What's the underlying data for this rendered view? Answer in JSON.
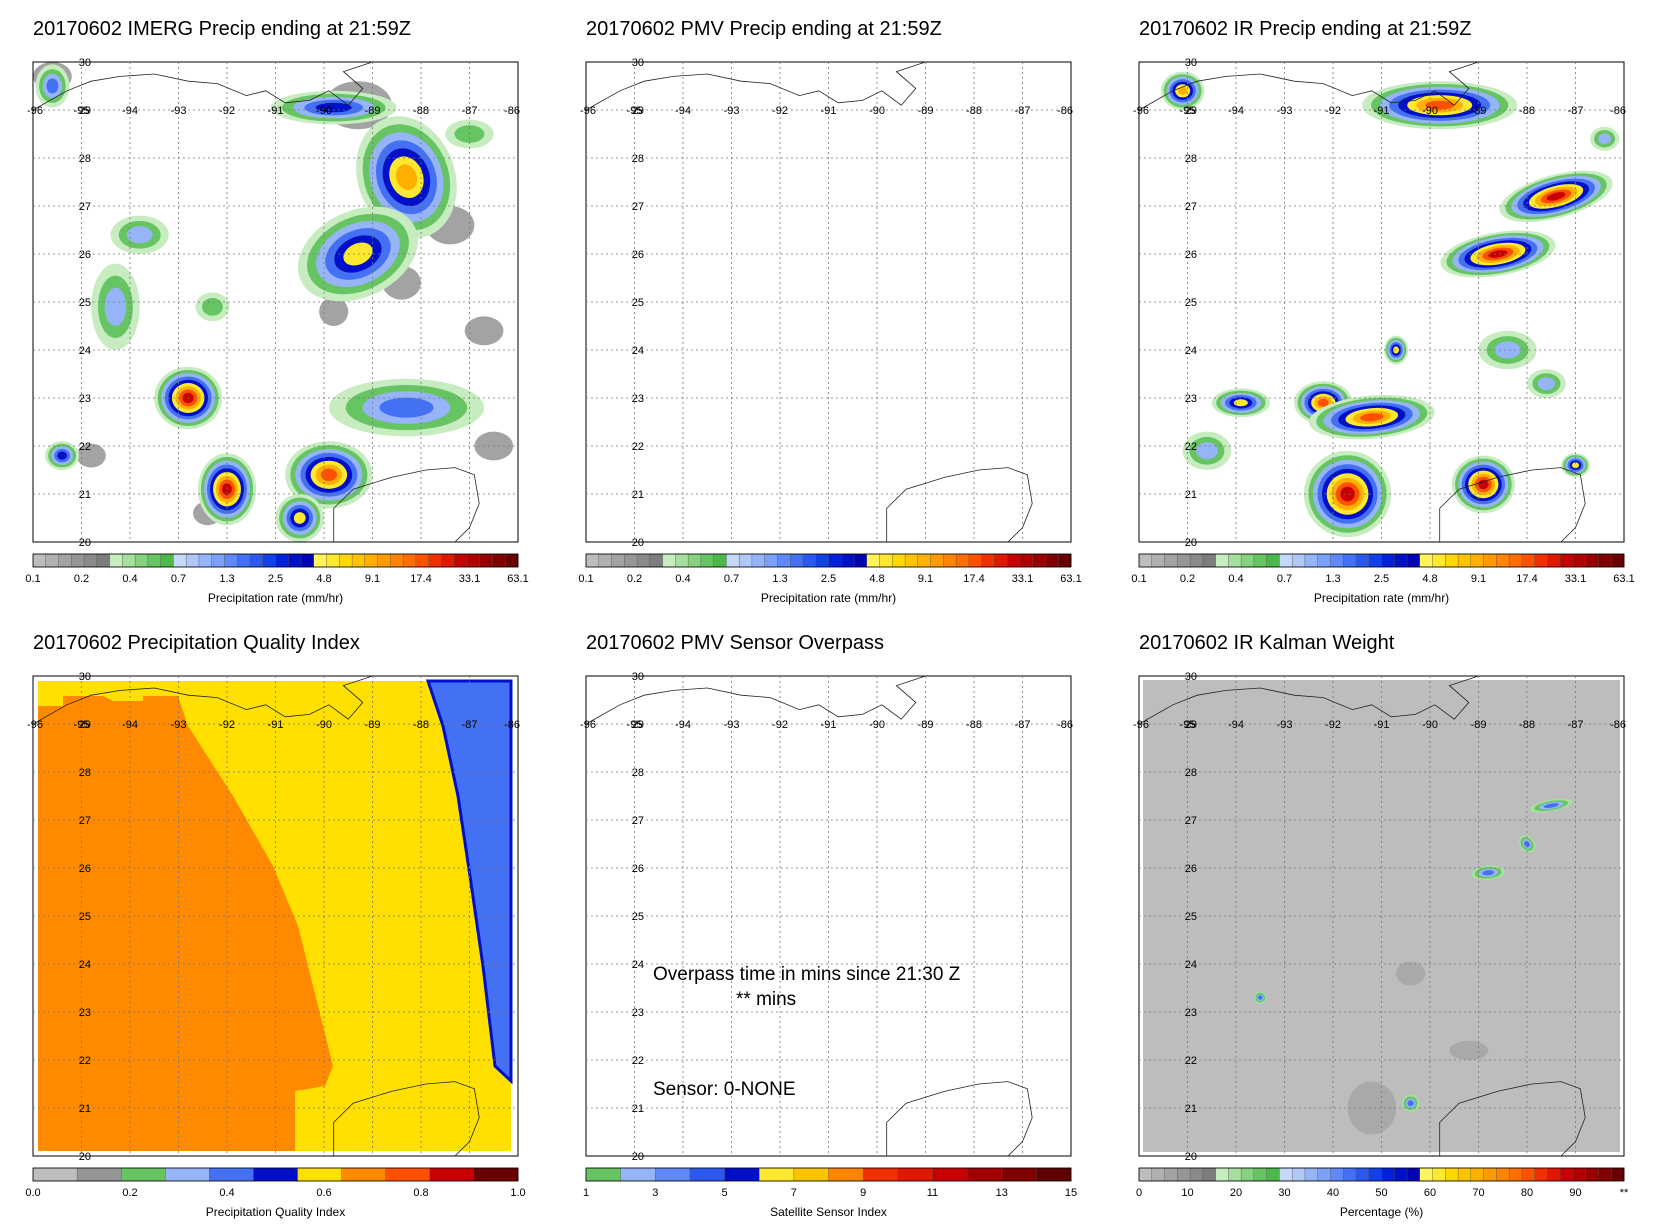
{
  "panels": [
    {
      "id": "p1",
      "title": "20170602 IMERG Precip ending at 21:59Z",
      "colorbar": "precip",
      "type": "imerg"
    },
    {
      "id": "p2",
      "title": "20170602 PMV Precip ending at 21:59Z",
      "colorbar": "precip",
      "type": "empty"
    },
    {
      "id": "p3",
      "title": "20170602 IR Precip ending at 21:59Z",
      "colorbar": "precip",
      "type": "ir"
    },
    {
      "id": "p4",
      "title": "20170602 Precipitation Quality Index",
      "colorbar": "quality",
      "type": "quality"
    },
    {
      "id": "p5",
      "title": "20170602 PMV Sensor Overpass",
      "colorbar": "sensor",
      "type": "overpass",
      "overpass_line1": "Overpass time in mins since 21:30 Z",
      "overpass_line2": "** mins",
      "sensor_line": "Sensor:   0-NONE"
    },
    {
      "id": "p6",
      "title": "20170602 IR Kalman Weight",
      "colorbar": "percent",
      "type": "kalman"
    }
  ],
  "axes": {
    "lat_labels": [
      "30",
      "29",
      "28",
      "27",
      "26",
      "25",
      "24",
      "23",
      "22",
      "21",
      "20"
    ],
    "lon_labels": [
      "-96",
      "-95",
      "-94",
      "-93",
      "-92",
      "-91",
      "-90",
      "-89",
      "-88",
      "-87",
      "-86"
    ]
  },
  "colorbars": {
    "precip": {
      "label": "Precipitation rate (mm/hr)",
      "ticks": [
        "0.1",
        "0.2",
        "0.4",
        "0.7",
        "1.3",
        "2.5",
        "4.8",
        "9.1",
        "17.4",
        "33.1",
        "63.1"
      ],
      "colors": [
        "#bdbdbd",
        "#b0b0b0",
        "#a3a3a3",
        "#969696",
        "#8a8a8a",
        "#7d7d7d",
        "#c6ecc0",
        "#a6dfa0",
        "#86d280",
        "#66c562",
        "#4cb84a",
        "#c6d8f8",
        "#b0c8f8",
        "#96b4f8",
        "#7ca0f8",
        "#6088f8",
        "#4470f4",
        "#2c58f0",
        "#1040e8",
        "#0020dc",
        "#0010c8",
        "#0000b4",
        "#fff45a",
        "#ffe830",
        "#ffd800",
        "#ffc400",
        "#ffb000",
        "#ff9a00",
        "#ff8400",
        "#ff6e00",
        "#ff5000",
        "#f03000",
        "#e01800",
        "#c80000",
        "#b00000",
        "#980000",
        "#800000",
        "#680000"
      ]
    },
    "quality": {
      "label": "Precipitation Quality Index",
      "ticks": [
        "0.0",
        "0.2",
        "0.4",
        "0.6",
        "0.8",
        "1.0"
      ],
      "colors": [
        "#bdbdbd",
        "#969696",
        "#66c562",
        "#96b4f8",
        "#4470f4",
        "#0010c8",
        "#ffe000",
        "#ff8a00",
        "#ff5000",
        "#c80000",
        "#680000"
      ]
    },
    "sensor": {
      "label": "Satellite Sensor Index",
      "ticks": [
        "1",
        "3",
        "5",
        "7",
        "9",
        "11",
        "13",
        "15"
      ],
      "colors": [
        "#66c562",
        "#96b4f8",
        "#6088f8",
        "#2c58f0",
        "#0010c8",
        "#ffe830",
        "#ffc400",
        "#ff8400",
        "#f03000",
        "#e01800",
        "#c80000",
        "#a00000",
        "#800000",
        "#600000"
      ]
    },
    "percent": {
      "label": "Percentage (%)",
      "ticks": [
        "0",
        "10",
        "20",
        "30",
        "40",
        "50",
        "60",
        "70",
        "80",
        "90",
        "**"
      ],
      "colors": [
        "#bdbdbd",
        "#b0b0b0",
        "#a3a3a3",
        "#969696",
        "#8a8a8a",
        "#7d7d7d",
        "#c6ecc0",
        "#a6dfa0",
        "#86d280",
        "#66c562",
        "#4cb84a",
        "#c6d8f8",
        "#b0c8f8",
        "#96b4f8",
        "#7ca0f8",
        "#6088f8",
        "#4470f4",
        "#2c58f0",
        "#1040e8",
        "#0020dc",
        "#0010c8",
        "#0000b4",
        "#fff45a",
        "#ffe830",
        "#ffd800",
        "#ffc400",
        "#ffb000",
        "#ff9a00",
        "#ff8400",
        "#ff6e00",
        "#ff5000",
        "#f03000",
        "#e01800",
        "#c80000",
        "#b00000",
        "#980000",
        "#800000",
        "#680000"
      ]
    }
  }
}
